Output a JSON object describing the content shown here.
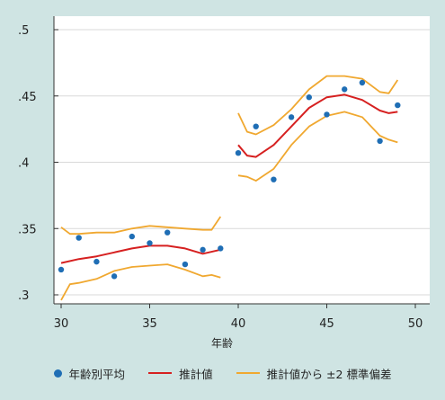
{
  "chart_data": {
    "type": "scatter",
    "xlabel": "年齢",
    "ylabel": "",
    "xlim": [
      30,
      50
    ],
    "ylim": [
      0.3,
      0.5
    ],
    "x_ticks": [
      30,
      35,
      40,
      45,
      50
    ],
    "x_tick_labels": [
      "30",
      "35",
      "40",
      "45",
      "50"
    ],
    "y_ticks": [
      0.3,
      0.35,
      0.4,
      0.45,
      0.5
    ],
    "y_tick_labels": [
      ".3",
      ".35",
      ".4",
      ".45",
      ".5"
    ],
    "grid": "horizontal",
    "legend_position": "bottom",
    "colors": {
      "background": "#cfe4e3",
      "plot_area": "#ffffff",
      "points": "#1f6eb5",
      "fit": "#d62020",
      "band": "#f0a830",
      "grid": "#d9d9d9"
    },
    "series": [
      {
        "name": "年齢別平均",
        "kind": "points",
        "x": [
          30,
          31,
          32,
          33,
          34,
          35,
          36,
          37,
          38,
          39,
          40,
          41,
          42,
          43,
          44,
          45,
          46,
          47,
          48,
          49
        ],
        "y": [
          0.319,
          0.343,
          0.325,
          0.314,
          0.344,
          0.339,
          0.347,
          0.323,
          0.334,
          0.335,
          0.407,
          0.427,
          0.387,
          0.434,
          0.449,
          0.436,
          0.455,
          0.46,
          0.416,
          0.443
        ]
      },
      {
        "name": "推計値",
        "kind": "line",
        "segments": [
          {
            "x": [
              30,
              31,
              32,
              33,
              34,
              35,
              36,
              37,
              38,
              39
            ],
            "y": [
              0.324,
              0.327,
              0.329,
              0.332,
              0.335,
              0.337,
              0.337,
              0.335,
              0.331,
              0.334
            ]
          },
          {
            "x": [
              40,
              40.5,
              41,
              42,
              43,
              44,
              45,
              46,
              47,
              48,
              48.5,
              49
            ],
            "y": [
              0.413,
              0.405,
              0.404,
              0.413,
              0.427,
              0.441,
              0.449,
              0.451,
              0.447,
              0.439,
              0.437,
              0.438
            ]
          }
        ]
      },
      {
        "name": "推計値から ±2 標準偏差",
        "kind": "band",
        "segments": [
          {
            "upper": {
              "x": [
                30,
                30.5,
                31,
                32,
                33,
                34,
                35,
                36,
                37,
                38,
                38.5,
                39
              ],
              "y": [
                0.351,
                0.346,
                0.346,
                0.347,
                0.347,
                0.35,
                0.352,
                0.351,
                0.35,
                0.349,
                0.349,
                0.359
              ]
            },
            "lower": {
              "x": [
                30,
                30.5,
                31,
                32,
                33,
                34,
                35,
                36,
                37,
                38,
                38.5,
                39
              ],
              "y": [
                0.296,
                0.308,
                0.309,
                0.312,
                0.318,
                0.321,
                0.322,
                0.323,
                0.319,
                0.314,
                0.315,
                0.313
              ]
            }
          },
          {
            "upper": {
              "x": [
                40,
                40.5,
                41,
                42,
                43,
                44,
                45,
                46,
                47,
                48,
                48.5,
                49
              ],
              "y": [
                0.437,
                0.423,
                0.421,
                0.428,
                0.44,
                0.455,
                0.465,
                0.465,
                0.463,
                0.453,
                0.452,
                0.462
              ]
            },
            "lower": {
              "x": [
                40,
                40.5,
                41,
                42,
                43,
                44,
                45,
                46,
                47,
                48,
                48.5,
                49
              ],
              "y": [
                0.39,
                0.389,
                0.386,
                0.395,
                0.413,
                0.427,
                0.435,
                0.438,
                0.434,
                0.42,
                0.417,
                0.415
              ]
            }
          }
        ]
      }
    ]
  }
}
